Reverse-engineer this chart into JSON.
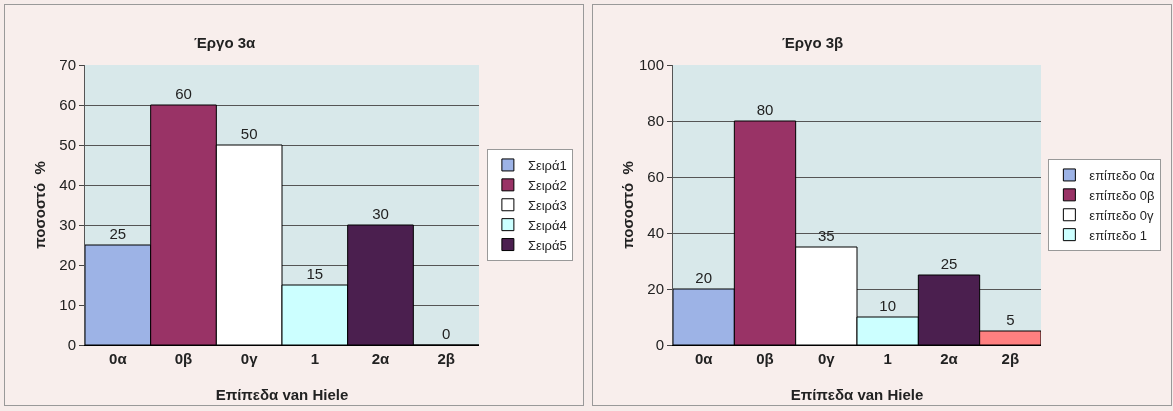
{
  "chart_data": [
    {
      "type": "bar",
      "title": "Έργο 3α",
      "xlabel": "Επίπεδα van Hiele",
      "ylabel": "ποσοστό  %",
      "categories": [
        "0α",
        "0β",
        "0γ",
        "1",
        "2α",
        "2β"
      ],
      "series": [
        {
          "name": "Σειρά1",
          "color": "#9db3e6",
          "values": [
            25,
            null,
            null,
            null,
            null,
            null
          ]
        },
        {
          "name": "Σειρά2",
          "color": "#993366",
          "values": [
            null,
            60,
            null,
            null,
            null,
            null
          ]
        },
        {
          "name": "Σειρά3",
          "color": "#ffffff",
          "values": [
            null,
            null,
            50,
            null,
            null,
            null
          ]
        },
        {
          "name": "Σειρά4",
          "color": "#ccffff",
          "values": [
            null,
            null,
            null,
            15,
            null,
            null
          ]
        },
        {
          "name": "Σειρά5",
          "color": "#4b1f4f",
          "values": [
            null,
            null,
            null,
            null,
            30,
            null
          ]
        },
        {
          "color": "#ff8080",
          "values": [
            null,
            null,
            null,
            null,
            null,
            0
          ]
        }
      ],
      "ylim": [
        0,
        70
      ],
      "yticks": [
        0,
        10,
        20,
        30,
        40,
        50,
        60,
        70
      ],
      "grid": "y",
      "legend": "right",
      "data_labels": true
    },
    {
      "type": "bar",
      "title": "Έργο 3β",
      "xlabel": "Επίπεδα van Hiele",
      "ylabel": "ποσοστό  %",
      "categories": [
        "0α",
        "0β",
        "0γ",
        "1",
        "2α",
        "2β"
      ],
      "series": [
        {
          "name": "επίπεδο 0α",
          "color": "#9db3e6",
          "values": [
            20,
            null,
            null,
            null,
            null,
            null
          ]
        },
        {
          "name": "επίπεδο 0β",
          "color": "#993366",
          "values": [
            null,
            80,
            null,
            null,
            null,
            null
          ]
        },
        {
          "name": "επίπεδο 0γ",
          "color": "#ffffff",
          "values": [
            null,
            null,
            35,
            null,
            null,
            null
          ]
        },
        {
          "name": "επίπεδο 1",
          "color": "#ccffff",
          "values": [
            null,
            null,
            null,
            10,
            null,
            null
          ]
        },
        {
          "color": "#4b1f4f",
          "values": [
            null,
            null,
            null,
            null,
            25,
            null
          ]
        },
        {
          "color": "#ff8080",
          "values": [
            null,
            null,
            null,
            null,
            null,
            5
          ]
        }
      ],
      "ylim": [
        0,
        100
      ],
      "yticks": [
        0,
        20,
        40,
        60,
        80,
        100
      ],
      "grid": "y",
      "legend": "right",
      "data_labels": true
    }
  ]
}
